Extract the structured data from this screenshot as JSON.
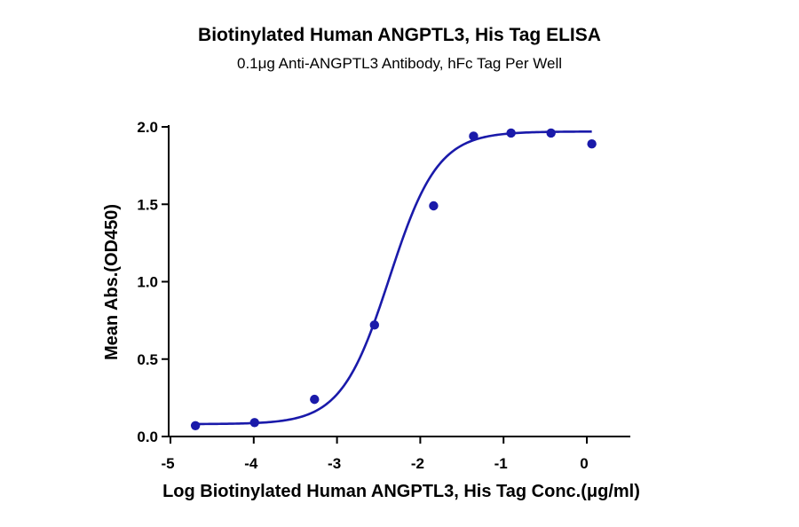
{
  "chart_data": {
    "type": "scatter",
    "title": "Biotinylated Human ANGPTL3, His Tag ELISA",
    "subtitle": "0.1μg Anti-ANGPTL3 Antibody, hFc Tag Per Well",
    "xlabel": "Log Biotinylated Human ANGPTL3, His Tag Conc.(μg/ml)",
    "ylabel": "Mean Abs.(OD450)",
    "xlim": [
      -5,
      0.5
    ],
    "ylim": [
      0,
      2.0
    ],
    "xticks": [
      -5,
      -4,
      -3,
      -2,
      -1,
      0
    ],
    "xtick_labels": [
      "-5",
      "-4",
      "-3",
      "-2",
      "-1",
      "0"
    ],
    "yticks": [
      0,
      0.5,
      1.0,
      1.5,
      2.0
    ],
    "ytick_labels": [
      "0.0",
      "0.5",
      "1.0",
      "1.5",
      "2.0"
    ],
    "grid": false,
    "point_color": "#1a1aaa",
    "curve_color": "#1a1aaa",
    "series": [
      {
        "x": [
          -4.7,
          -3.99,
          -3.27,
          -2.55,
          -1.84,
          -1.36,
          -0.91,
          -0.43,
          0.06
        ],
        "y": [
          0.07,
          0.09,
          0.24,
          0.72,
          1.49,
          1.94,
          1.96,
          1.96,
          1.89
        ]
      }
    ],
    "fit": {
      "model": "4PL",
      "bottom": 0.08,
      "top": 1.97,
      "logEC50": -2.37,
      "hill": 1.5
    }
  }
}
